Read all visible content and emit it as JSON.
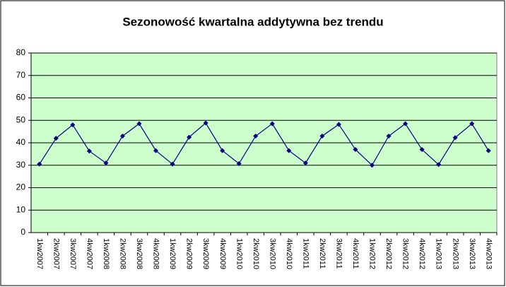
{
  "chart_data": {
    "type": "line",
    "title": "Sezonowość kwartalna addytywna bez trendu",
    "categories": [
      "1kw2007",
      "2kw2007",
      "3kw2007",
      "4kw2007",
      "1kw2008",
      "2kw2008",
      "3kw2008",
      "4kw2008",
      "1kw2009",
      "2kw2009",
      "3kw2009",
      "4kw2009",
      "1kw2010",
      "2kw2010",
      "3kw2010",
      "4kw2010",
      "1kw2011",
      "2kw2011",
      "3kw2011",
      "4kw2011",
      "1kw2012",
      "2kw2012",
      "3kw2012",
      "4kw2012",
      "1kw2013",
      "2kw2013",
      "3kw2013",
      "4kw2013"
    ],
    "values": [
      30.5,
      42,
      48,
      36.3,
      31,
      43,
      48.5,
      36.5,
      30.5,
      42.5,
      48.8,
      36.5,
      30.7,
      43,
      48.5,
      36.5,
      31,
      43,
      48.2,
      37,
      30,
      43,
      48.5,
      37,
      30.3,
      42.3,
      48.5,
      36.5
    ],
    "color": "#000080",
    "ylim": [
      0,
      80
    ],
    "yticks": [
      0,
      10,
      20,
      30,
      40,
      50,
      60,
      70,
      80
    ],
    "grid": true
  }
}
